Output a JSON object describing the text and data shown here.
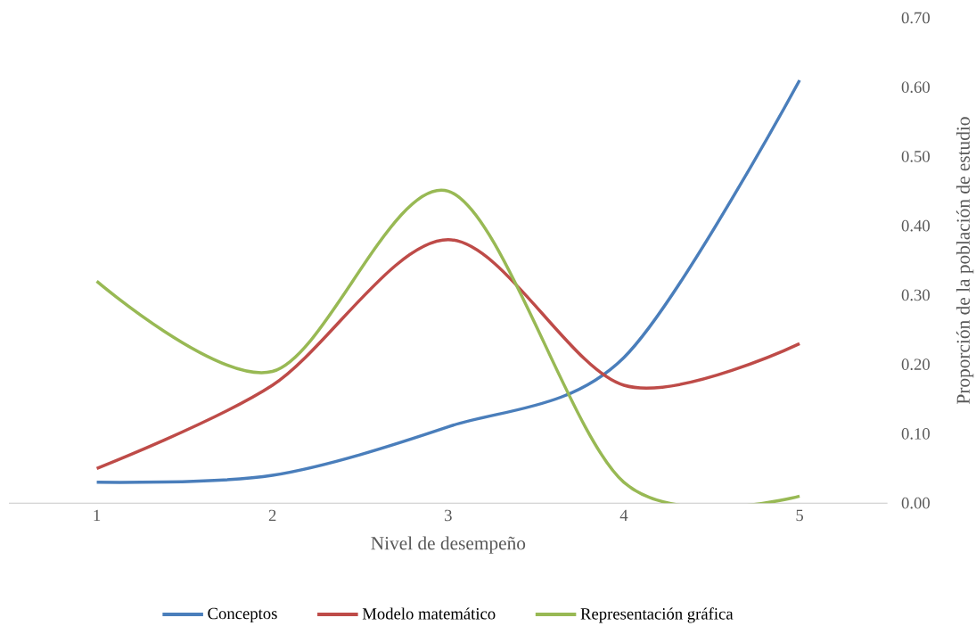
{
  "chart_data": {
    "type": "line",
    "xlabel": "Nivel de desempeño",
    "ylabel": "Proporción de la población de estudio",
    "categories": [
      "1",
      "2",
      "3",
      "4",
      "5"
    ],
    "series": [
      {
        "name": "Conceptos",
        "color": "#4a7ebb",
        "values": [
          0.03,
          0.04,
          0.11,
          0.21,
          0.61
        ]
      },
      {
        "name": "Modelo matemático",
        "color": "#be4b48",
        "values": [
          0.05,
          0.17,
          0.38,
          0.17,
          0.23
        ]
      },
      {
        "name": "Representación gráfica",
        "color": "#98b954",
        "values": [
          0.32,
          0.19,
          0.45,
          0.03,
          0.01
        ]
      }
    ],
    "ylim": [
      0,
      0.7
    ],
    "yticks": [
      {
        "value": 0,
        "label": "0.00"
      },
      {
        "value": 0.1,
        "label": "0.10"
      },
      {
        "value": 0.2,
        "label": "0.20"
      },
      {
        "value": 0.3,
        "label": "0.30"
      },
      {
        "value": 0.4,
        "label": "0.40"
      },
      {
        "value": 0.5,
        "label": "0.50"
      },
      {
        "value": 0.6,
        "label": "0.60"
      },
      {
        "value": 0.7,
        "label": "0.70"
      }
    ],
    "grid": false,
    "legend": "bottom",
    "marker": "none",
    "line_style": "solid"
  }
}
